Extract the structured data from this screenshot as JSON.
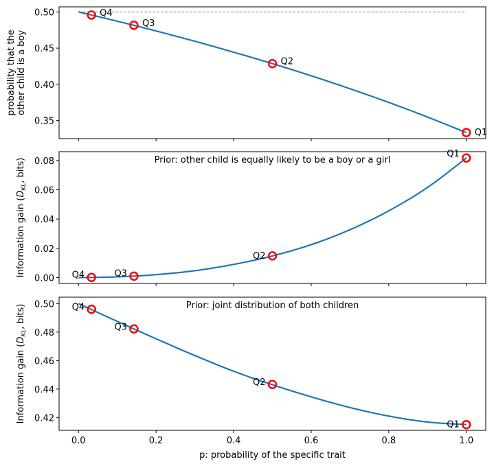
{
  "chart_data": [
    {
      "type": "line",
      "title": "",
      "xlabel": "",
      "ylabel": "probability that the\nother child is a boy",
      "ylabel_lines": [
        "probability that the",
        "other child is a boy"
      ],
      "xlim": [
        -0.05,
        1.05
      ],
      "ylim": [
        0.325,
        0.507
      ],
      "xticks": [
        0.0,
        0.2,
        0.4,
        0.6,
        0.8,
        1.0
      ],
      "xtick_labels_visible": false,
      "yticks": [
        0.35,
        0.4,
        0.45,
        0.5
      ],
      "ytick_labels": [
        "0.35",
        "0.40",
        "0.45",
        "0.50"
      ],
      "annotation": "",
      "reference_line": {
        "y": 0.5,
        "x_range": [
          0.0,
          1.0
        ],
        "style": "dashed",
        "color": "#808080"
      },
      "series": [
        {
          "name": "curve",
          "formula": "(2-p)/(4-p)",
          "x": [
            0.0,
            0.1,
            0.2,
            0.3,
            0.4,
            0.5,
            0.6,
            0.7,
            0.8,
            0.9,
            1.0
          ],
          "y": [
            0.5,
            0.4872,
            0.4737,
            0.4595,
            0.4444,
            0.4286,
            0.4118,
            0.3939,
            0.375,
            0.3548,
            0.3333
          ],
          "color": "#1f77b4"
        }
      ],
      "points": [
        {
          "label": "Q4",
          "x": 0.0335,
          "y": 0.4957,
          "label_side": "right"
        },
        {
          "label": "Q3",
          "x": 0.143,
          "y": 0.4815,
          "label_side": "right"
        },
        {
          "label": "Q2",
          "x": 0.5,
          "y": 0.4286,
          "label_side": "right"
        },
        {
          "label": "Q1",
          "x": 1.0,
          "y": 0.3333,
          "label_side": "right"
        }
      ]
    },
    {
      "type": "line",
      "title": "",
      "xlabel": "",
      "ylabel": "Information gain (D_KL, bits)",
      "ylabel_parts": [
        "Information gain (",
        "D",
        "KL",
        ", bits)"
      ],
      "xlim": [
        -0.05,
        1.05
      ],
      "ylim": [
        -0.004,
        0.086
      ],
      "xticks": [
        0.0,
        0.2,
        0.4,
        0.6,
        0.8,
        1.0
      ],
      "xtick_labels_visible": false,
      "yticks": [
        0.0,
        0.02,
        0.04,
        0.06,
        0.08
      ],
      "ytick_labels": [
        "0.00",
        "0.02",
        "0.04",
        "0.06",
        "0.08"
      ],
      "annotation": "Prior: other child is equally likely to be a boy or a girl",
      "series": [
        {
          "name": "curve",
          "formula": "1 - H((2-p)/(4-p))",
          "x": [
            0.0,
            0.1,
            0.2,
            0.3,
            0.4,
            0.5,
            0.6,
            0.7,
            0.8,
            0.9,
            1.0
          ],
          "y": [
            0.0,
            0.0005,
            0.002,
            0.0047,
            0.009,
            0.0148,
            0.0225,
            0.0327,
            0.0456,
            0.0616,
            0.0817
          ],
          "color": "#1f77b4"
        }
      ],
      "points": [
        {
          "label": "Q4",
          "x": 0.0335,
          "y": 0.0001,
          "label_side": "left"
        },
        {
          "label": "Q3",
          "x": 0.143,
          "y": 0.001,
          "label_side": "left"
        },
        {
          "label": "Q2",
          "x": 0.5,
          "y": 0.0148,
          "label_side": "left"
        },
        {
          "label": "Q1",
          "x": 1.0,
          "y": 0.0817,
          "label_side": "left"
        }
      ]
    },
    {
      "type": "line",
      "title": "",
      "xlabel": "p: probability of the specific trait",
      "ylabel": "Information gain (D_KL, bits)",
      "ylabel_parts": [
        "Information gain (",
        "D",
        "KL",
        ", bits)"
      ],
      "xlim": [
        -0.05,
        1.05
      ],
      "ylim": [
        0.411,
        0.5045
      ],
      "xticks": [
        0.0,
        0.2,
        0.4,
        0.6,
        0.8,
        1.0
      ],
      "xtick_labels": [
        "0.0",
        "0.2",
        "0.4",
        "0.6",
        "0.8",
        "1.0"
      ],
      "xtick_labels_visible": true,
      "yticks": [
        0.42,
        0.44,
        0.46,
        0.48,
        0.5
      ],
      "ytick_labels": [
        "0.42",
        "0.44",
        "0.46",
        "0.48",
        "0.50"
      ],
      "annotation": "Prior: joint distribution of both children",
      "series": [
        {
          "name": "curve",
          "x": [
            0.0,
            0.1,
            0.2,
            0.3,
            0.4,
            0.5,
            0.6,
            0.7,
            0.8,
            0.9,
            1.0
          ],
          "y": [
            0.5,
            0.4875,
            0.4753,
            0.4635,
            0.4525,
            0.443,
            0.4345,
            0.427,
            0.421,
            0.4168,
            0.415
          ],
          "color": "#1f77b4"
        }
      ],
      "points": [
        {
          "label": "Q4",
          "x": 0.0335,
          "y": 0.496,
          "label_side": "left"
        },
        {
          "label": "Q3",
          "x": 0.143,
          "y": 0.4822,
          "label_side": "left"
        },
        {
          "label": "Q2",
          "x": 0.5,
          "y": 0.4432,
          "label_side": "left"
        },
        {
          "label": "Q1",
          "x": 1.0,
          "y": 0.415,
          "label_side": "left"
        }
      ]
    }
  ]
}
